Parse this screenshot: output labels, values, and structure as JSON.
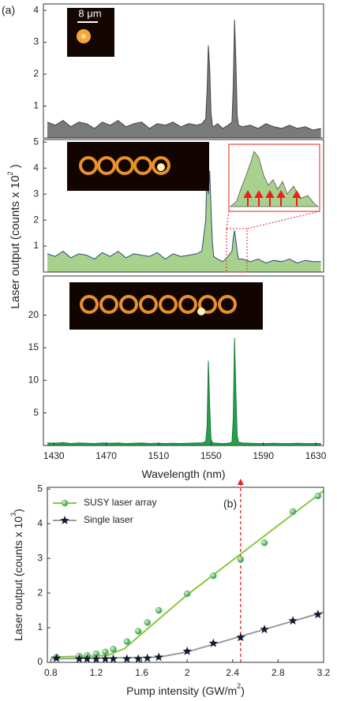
{
  "figure_a": {
    "label": "(a)",
    "scale_bar": "8 μm",
    "y_label": "Laser output (counts  x 10",
    "y_label_sup": "2",
    "y_label_end": " )"
  },
  "chart_data": [
    {
      "type": "area",
      "xlim": [
        1422,
        1636
      ],
      "ylim": [
        0,
        4.2
      ],
      "yticks": [
        1,
        2,
        3,
        4
      ],
      "color": "#444444",
      "fill": "#7a7a7a",
      "x": [
        1425,
        1431,
        1437,
        1443,
        1449,
        1455,
        1461,
        1467,
        1473,
        1479,
        1485,
        1491,
        1497,
        1503,
        1509,
        1515,
        1521,
        1527,
        1533,
        1539,
        1543,
        1546,
        1547,
        1548,
        1549,
        1550,
        1551,
        1552,
        1555,
        1559,
        1563,
        1566,
        1567,
        1568,
        1569,
        1570,
        1571,
        1574,
        1580,
        1586,
        1592,
        1598,
        1604,
        1610,
        1616,
        1622,
        1628,
        1634
      ],
      "values": [
        0.5,
        0.4,
        0.55,
        0.35,
        0.5,
        0.45,
        0.3,
        0.5,
        0.4,
        0.55,
        0.35,
        0.45,
        0.5,
        0.3,
        0.45,
        0.4,
        0.5,
        0.35,
        0.45,
        0.4,
        0.45,
        0.6,
        1.5,
        2.9,
        2.2,
        0.8,
        0.4,
        0.35,
        0.45,
        0.3,
        0.4,
        0.5,
        1.6,
        3.7,
        2.4,
        0.7,
        0.4,
        0.35,
        0.4,
        0.3,
        0.45,
        0.35,
        0.3,
        0.4,
        0.3,
        0.35,
        0.25,
        0.3
      ]
    },
    {
      "type": "area",
      "xlim": [
        1422,
        1636
      ],
      "ylim": [
        0,
        5.1
      ],
      "yticks": [
        1,
        2,
        3,
        4,
        5
      ],
      "color": "#2b4a78",
      "fill": "#a9d18e",
      "x": [
        1425,
        1431,
        1437,
        1443,
        1449,
        1455,
        1461,
        1467,
        1473,
        1479,
        1485,
        1491,
        1497,
        1503,
        1509,
        1515,
        1521,
        1527,
        1533,
        1539,
        1543,
        1546,
        1547,
        1548,
        1549,
        1550,
        1551,
        1552,
        1555,
        1559,
        1563,
        1566,
        1567,
        1568,
        1569,
        1570,
        1571,
        1574,
        1580,
        1586,
        1592,
        1598,
        1604,
        1610,
        1616,
        1622,
        1628,
        1634
      ],
      "values": [
        0.7,
        0.6,
        0.8,
        0.55,
        0.7,
        0.65,
        0.5,
        0.75,
        0.6,
        0.8,
        0.55,
        0.7,
        0.65,
        0.6,
        0.75,
        0.5,
        0.7,
        0.6,
        0.65,
        0.7,
        0.8,
        2.0,
        4.3,
        3.0,
        3.9,
        2.5,
        1.2,
        0.6,
        0.5,
        0.4,
        0.6,
        0.8,
        1.3,
        1.6,
        1.2,
        0.8,
        0.5,
        0.5,
        0.4,
        0.5,
        0.35,
        0.45,
        0.4,
        0.5,
        0.35,
        0.45,
        0.4,
        0.4
      ]
    },
    {
      "type": "area",
      "xlim": [
        1422,
        1636
      ],
      "ylim": [
        0,
        26
      ],
      "yticks": [
        5,
        10,
        15,
        20
      ],
      "xticks": [
        1430,
        1470,
        1510,
        1550,
        1590,
        1630
      ],
      "x_label": "Wavelength (nm)",
      "color": "#1a7a36",
      "fill": "#23a14b",
      "x": [
        1425,
        1431,
        1437,
        1443,
        1449,
        1455,
        1461,
        1467,
        1473,
        1479,
        1485,
        1491,
        1497,
        1503,
        1509,
        1515,
        1521,
        1527,
        1533,
        1539,
        1543,
        1546,
        1547,
        1548,
        1549,
        1550,
        1551,
        1552,
        1555,
        1559,
        1563,
        1566,
        1567,
        1568,
        1569,
        1570,
        1571,
        1574,
        1580,
        1586,
        1592,
        1598,
        1604,
        1610,
        1616,
        1622,
        1628,
        1634
      ],
      "values": [
        0.4,
        0.35,
        0.45,
        0.3,
        0.4,
        0.35,
        0.3,
        0.4,
        0.35,
        0.4,
        0.3,
        0.35,
        0.4,
        0.3,
        0.35,
        0.3,
        0.35,
        0.3,
        0.35,
        0.4,
        0.4,
        0.6,
        3,
        13,
        6,
        1,
        0.5,
        0.4,
        0.35,
        0.3,
        0.35,
        0.5,
        4,
        16.5,
        8,
        1.5,
        0.5,
        0.4,
        0.35,
        0.3,
        0.3,
        0.35,
        0.3,
        0.3,
        0.35,
        0.3,
        0.3,
        0.3
      ]
    },
    {
      "type": "scatter",
      "label": "(b)",
      "xlim": [
        0.77,
        3.2
      ],
      "ylim": [
        0,
        5.05
      ],
      "xticks": [
        0.8,
        1.2,
        1.6,
        2,
        2.4,
        2.8,
        3.2
      ],
      "yticks": [
        0,
        1,
        2,
        3,
        4,
        5
      ],
      "x_label": "Pump intensity (GW/m",
      "x_label_sup": "2",
      "x_label_end": ")",
      "y_label": "Laser output (counts x 10",
      "y_label_sup": "3",
      "y_label_end": ")",
      "legend": "upper left",
      "marker_x": 2.47,
      "marker_color": "#e8221b",
      "series": [
        {
          "name": "SUSY laser array",
          "color": "#4dbb5f",
          "marker": "circle",
          "x": [
            0.85,
            1.05,
            1.12,
            1.2,
            1.28,
            1.35,
            1.47,
            1.57,
            1.65,
            1.75,
            2.0,
            2.23,
            2.47,
            2.68,
            2.93,
            3.15
          ],
          "values": [
            0.15,
            0.18,
            0.2,
            0.25,
            0.3,
            0.38,
            0.6,
            0.9,
            1.15,
            1.5,
            1.98,
            2.5,
            2.97,
            3.45,
            4.35,
            4.8
          ]
        },
        {
          "name": "Single laser",
          "color": "#111a33",
          "marker": "star",
          "x": [
            0.85,
            1.05,
            1.12,
            1.2,
            1.28,
            1.35,
            1.47,
            1.57,
            1.65,
            1.75,
            2.0,
            2.23,
            2.47,
            2.68,
            2.93,
            3.15
          ],
          "values": [
            0.12,
            0.1,
            0.1,
            0.1,
            0.1,
            0.1,
            0.1,
            0.1,
            0.12,
            0.15,
            0.32,
            0.55,
            0.72,
            0.95,
            1.2,
            1.38
          ]
        }
      ],
      "fits": [
        {
          "color": "#8cc63f",
          "x": [
            0.8,
            1.3,
            1.45,
            2.0,
            3.2
          ],
          "values": [
            0.15,
            0.2,
            0.4,
            1.95,
            4.95
          ]
        },
        {
          "color": "#9a9a9a",
          "x": [
            0.8,
            1.75,
            2.0,
            3.2
          ],
          "values": [
            0.1,
            0.15,
            0.3,
            1.45
          ]
        }
      ]
    }
  ]
}
